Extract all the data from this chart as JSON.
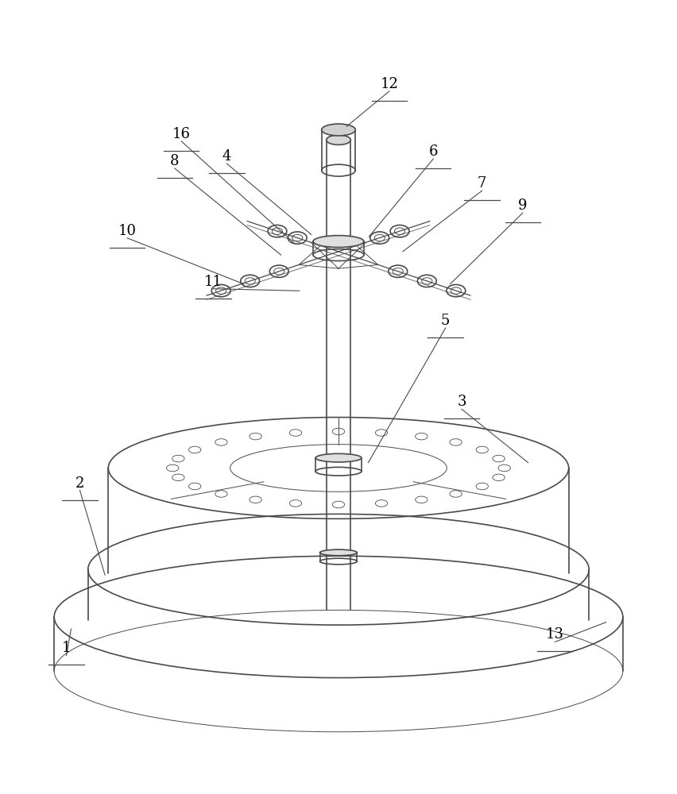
{
  "bg_color": "#ffffff",
  "line_color": "#4a4a4a",
  "label_color": "#000000",
  "line_width": 1.2,
  "thin_line": 0.7,
  "fig_width": 8.52,
  "fig_height": 10.0
}
